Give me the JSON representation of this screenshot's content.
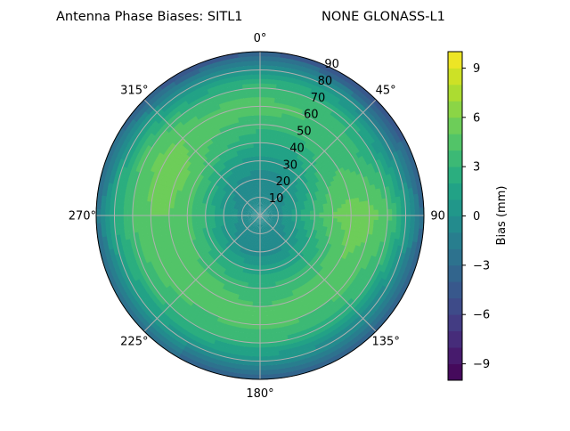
{
  "title_left": "Antenna Phase Biases: SITL1",
  "title_right": "NONE GLONASS-L1",
  "colors": {
    "viridis": [
      "#440154",
      "#482475",
      "#414487",
      "#355f8d",
      "#2a788e",
      "#21918c",
      "#22a884",
      "#44bf70",
      "#7ad151",
      "#bddf26",
      "#fde725"
    ],
    "grid": "#b0b0b0"
  },
  "chart_data": {
    "type": "heatmap",
    "projection": "polar",
    "theta_direction": "clockwise",
    "theta_zero": "top",
    "angular_ticks": [
      "0°",
      "45°",
      "90",
      "135°",
      "180°",
      "225°",
      "270°",
      "315°"
    ],
    "angular_tick_values": [
      0,
      45,
      90,
      135,
      180,
      225,
      270,
      315
    ],
    "radial_ticks": [
      "10",
      "20",
      "30",
      "40",
      "50",
      "60",
      "70",
      "80",
      "90"
    ],
    "radial_tick_values": [
      10,
      20,
      30,
      40,
      50,
      60,
      70,
      80,
      90
    ],
    "rlim": [
      0,
      90
    ],
    "colorbar": {
      "label": "Bias (mm)",
      "range": [
        -10,
        10
      ],
      "levels": 20,
      "ticks": [
        "9",
        "6",
        "3",
        "0",
        "−3",
        "−6",
        "−9"
      ],
      "tick_values": [
        9,
        6,
        3,
        0,
        -3,
        -6,
        -9
      ]
    },
    "field": {
      "description_free": true,
      "r": [
        0,
        10,
        20,
        30,
        40,
        50,
        60,
        70,
        80,
        90
      ],
      "theta": [
        0,
        30,
        60,
        90,
        120,
        150,
        180,
        210,
        240,
        270,
        300,
        330
      ],
      "values": [
        [
          -0.5,
          -0.5,
          -0.5,
          -0.5,
          -0.5,
          -0.5,
          -0.5,
          -0.5,
          -0.5,
          -0.5,
          -0.5,
          -0.5
        ],
        [
          -0.8,
          -0.8,
          -0.5,
          -0.3,
          -0.5,
          -0.8,
          -0.8,
          -0.8,
          -0.5,
          -0.3,
          -0.5,
          -0.8
        ],
        [
          -0.5,
          -0.3,
          0.5,
          1.5,
          0.5,
          -0.3,
          -0.5,
          -0.3,
          0.5,
          1.0,
          0.3,
          -0.3
        ],
        [
          0.5,
          0.5,
          2.0,
          3.5,
          2.0,
          1.5,
          1.5,
          2.0,
          2.5,
          3.0,
          2.5,
          1.0
        ],
        [
          2.0,
          2.0,
          3.5,
          5.0,
          3.5,
          3.5,
          3.0,
          3.5,
          4.0,
          4.5,
          4.5,
          3.0
        ],
        [
          3.5,
          3.5,
          4.0,
          5.5,
          5.0,
          4.5,
          4.0,
          5.0,
          4.5,
          5.0,
          5.5,
          4.0
        ],
        [
          4.5,
          4.0,
          3.5,
          5.5,
          4.5,
          4.0,
          4.5,
          4.0,
          4.5,
          5.0,
          5.5,
          4.5
        ],
        [
          3.5,
          3.0,
          2.0,
          4.5,
          3.0,
          2.5,
          3.0,
          3.0,
          3.5,
          4.0,
          4.5,
          3.0
        ],
        [
          0.5,
          0.0,
          -1.0,
          1.5,
          -0.5,
          -0.5,
          0.0,
          0.5,
          1.0,
          2.0,
          1.5,
          0.0
        ],
        [
          -4.5,
          -5.0,
          -4.5,
          -3.5,
          -4.0,
          -4.5,
          -4.5,
          -3.5,
          -3.0,
          -2.5,
          -3.5,
          -5.0
        ]
      ]
    }
  }
}
